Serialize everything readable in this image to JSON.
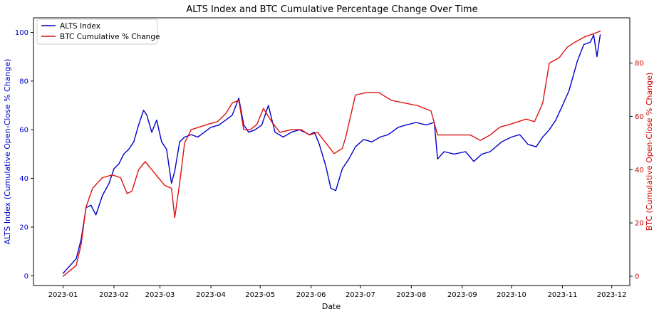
{
  "chart_data": {
    "type": "line",
    "title": "ALTS Index and BTC Cumulative Percentage Change Over Time",
    "xlabel": "Date",
    "ylabel_left": "ALTS Index (Cumulative Open-Close % Change)",
    "ylabel_right": "BTC (Cumulative Open-Close % Change)",
    "x_ticks": [
      "2023-01",
      "2023-02",
      "2023-03",
      "2023-04",
      "2023-05",
      "2023-06",
      "2023-07",
      "2023-08",
      "2023-09",
      "2023-10",
      "2023-11",
      "2023-12"
    ],
    "x_range": [
      "2022-12-14",
      "2023-12-12"
    ],
    "y_left": {
      "ticks": [
        0,
        20,
        40,
        60,
        80,
        100
      ],
      "range": [
        -4,
        106
      ],
      "color": "#0000cc"
    },
    "y_right": {
      "ticks": [
        0,
        20,
        40,
        60,
        80
      ],
      "range": [
        -3.5,
        97
      ],
      "color": "#cc0000"
    },
    "legend_position": "top-left",
    "grid": false,
    "series": [
      {
        "name": "ALTS Index",
        "axis": "left",
        "color": "#0000cc",
        "x": [
          "2023-01-01",
          "2023-01-05",
          "2023-01-09",
          "2023-01-12",
          "2023-01-15",
          "2023-01-18",
          "2023-01-21",
          "2023-01-25",
          "2023-01-29",
          "2023-02-01",
          "2023-02-04",
          "2023-02-07",
          "2023-02-10",
          "2023-02-13",
          "2023-02-16",
          "2023-02-19",
          "2023-02-21",
          "2023-02-24",
          "2023-02-27",
          "2023-03-02",
          "2023-03-05",
          "2023-03-08",
          "2023-03-10",
          "2023-03-13",
          "2023-03-16",
          "2023-03-20",
          "2023-03-24",
          "2023-03-28",
          "2023-04-01",
          "2023-04-06",
          "2023-04-10",
          "2023-04-14",
          "2023-04-18",
          "2023-04-21",
          "2023-04-24",
          "2023-04-28",
          "2023-05-02",
          "2023-05-06",
          "2023-05-10",
          "2023-05-15",
          "2023-05-20",
          "2023-05-25",
          "2023-05-31",
          "2023-06-03",
          "2023-06-06",
          "2023-06-10",
          "2023-06-13",
          "2023-06-16",
          "2023-06-20",
          "2023-06-24",
          "2023-06-28",
          "2023-07-03",
          "2023-07-08",
          "2023-07-13",
          "2023-07-18",
          "2023-07-24",
          "2023-07-29",
          "2023-08-04",
          "2023-08-10",
          "2023-08-15",
          "2023-08-17",
          "2023-08-21",
          "2023-08-27",
          "2023-09-03",
          "2023-09-08",
          "2023-09-13",
          "2023-09-18",
          "2023-09-25",
          "2023-10-01",
          "2023-10-06",
          "2023-10-11",
          "2023-10-16",
          "2023-10-20",
          "2023-10-24",
          "2023-10-28",
          "2023-11-01",
          "2023-11-05",
          "2023-11-10",
          "2023-11-14",
          "2023-11-18",
          "2023-11-20",
          "2023-11-22",
          "2023-11-24"
        ],
        "values": [
          1,
          4,
          7,
          15,
          28,
          29,
          25,
          33,
          38,
          44,
          46,
          50,
          52,
          55,
          62,
          68,
          66,
          59,
          64,
          55,
          52,
          38,
          43,
          55,
          57,
          58,
          57,
          59,
          61,
          62,
          64,
          66,
          73,
          62,
          59,
          60,
          62,
          70,
          59,
          57,
          59,
          60,
          58,
          59,
          54,
          45,
          36,
          35,
          44,
          48,
          53,
          56,
          55,
          57,
          58,
          61,
          62,
          63,
          62,
          63,
          48,
          51,
          50,
          51,
          47,
          50,
          51,
          55,
          57,
          58,
          54,
          53,
          57,
          60,
          64,
          70,
          76,
          88,
          95,
          96,
          99,
          90,
          99
        ]
      },
      {
        "name": "BTC Cumulative % Change",
        "axis": "right",
        "color": "#dd1111",
        "x": [
          "2023-01-01",
          "2023-01-05",
          "2023-01-09",
          "2023-01-12",
          "2023-01-15",
          "2023-01-19",
          "2023-01-25",
          "2023-01-31",
          "2023-02-05",
          "2023-02-09",
          "2023-02-12",
          "2023-02-16",
          "2023-02-20",
          "2023-02-24",
          "2023-02-28",
          "2023-03-04",
          "2023-03-08",
          "2023-03-10",
          "2023-03-13",
          "2023-03-16",
          "2023-03-20",
          "2023-03-25",
          "2023-03-30",
          "2023-04-05",
          "2023-04-10",
          "2023-04-14",
          "2023-04-18",
          "2023-04-21",
          "2023-04-25",
          "2023-04-29",
          "2023-05-03",
          "2023-05-08",
          "2023-05-13",
          "2023-05-20",
          "2023-05-26",
          "2023-05-31",
          "2023-06-05",
          "2023-06-10",
          "2023-06-15",
          "2023-06-20",
          "2023-06-22",
          "2023-06-28",
          "2023-07-05",
          "2023-07-12",
          "2023-07-20",
          "2023-07-28",
          "2023-08-05",
          "2023-08-13",
          "2023-08-17",
          "2023-08-21",
          "2023-08-30",
          "2023-09-06",
          "2023-09-12",
          "2023-09-18",
          "2023-09-24",
          "2023-09-30",
          "2023-10-05",
          "2023-10-10",
          "2023-10-15",
          "2023-10-20",
          "2023-10-24",
          "2023-10-30",
          "2023-11-04",
          "2023-11-09",
          "2023-11-15",
          "2023-11-20",
          "2023-11-24"
        ],
        "values": [
          0,
          2,
          4,
          12,
          26,
          33,
          37,
          38,
          37,
          31,
          32,
          40,
          43,
          40,
          37,
          34,
          33,
          22,
          35,
          50,
          55,
          56,
          57,
          58,
          61,
          65,
          66,
          55,
          55,
          57,
          63,
          58,
          54,
          55,
          55,
          53,
          54,
          50,
          46,
          48,
          52,
          68,
          69,
          69,
          66,
          65,
          64,
          62,
          53,
          53,
          53,
          53,
          51,
          53,
          56,
          57,
          58,
          59,
          58,
          65,
          80,
          82,
          86,
          88,
          90,
          91,
          92
        ]
      }
    ]
  }
}
